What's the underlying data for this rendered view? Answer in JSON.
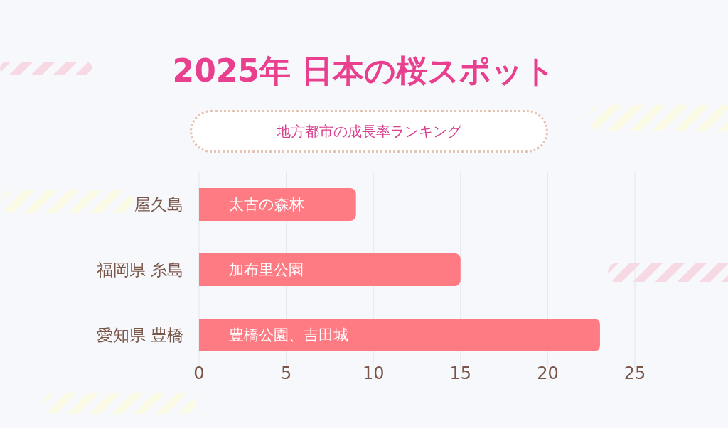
{
  "chart_data": {
    "type": "bar",
    "orientation": "horizontal",
    "title": "2025年 日本の桜スポット",
    "subtitle": "地方都市の成長率ランキング",
    "categories": [
      "屋久島",
      "福岡県 糸島",
      "愛知県 豊橋"
    ],
    "values": [
      9,
      15,
      23
    ],
    "color": "#ff7b84",
    "value_labels": [
      "太古の森林",
      "加布里公園",
      "豊橋公園、吉田城"
    ],
    "xlim": [
      0,
      25
    ],
    "xticks": [
      0,
      5,
      10,
      15,
      20,
      25
    ],
    "grid": "x"
  }
}
